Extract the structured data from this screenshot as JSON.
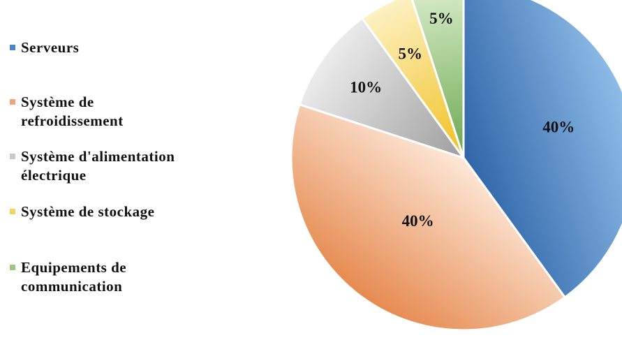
{
  "chart_data": {
    "type": "pie",
    "categories": [
      "Serveurs",
      "Système de refroidissement",
      "Système d'alimentation électrique",
      "Système de stockage",
      "Equipements de communication"
    ],
    "values": [
      40,
      40,
      10,
      5,
      5
    ],
    "labels": [
      "40%",
      "40%",
      "10%",
      "5%",
      "5%"
    ],
    "colors": [
      "#4a86c9",
      "#f1a678",
      "#c8c8c8",
      "#f6d45a",
      "#98c97f"
    ],
    "legend_position": "left"
  },
  "legend": {
    "items": [
      {
        "line1": "Serveurs",
        "line2": ""
      },
      {
        "line1": "Système de",
        "line2": "refroidissement"
      },
      {
        "line1": "Système d'alimentation",
        "line2": "électrique"
      },
      {
        "line1": "Système de stockage",
        "line2": ""
      },
      {
        "line1": "Equipements de",
        "line2": "communication"
      }
    ]
  }
}
